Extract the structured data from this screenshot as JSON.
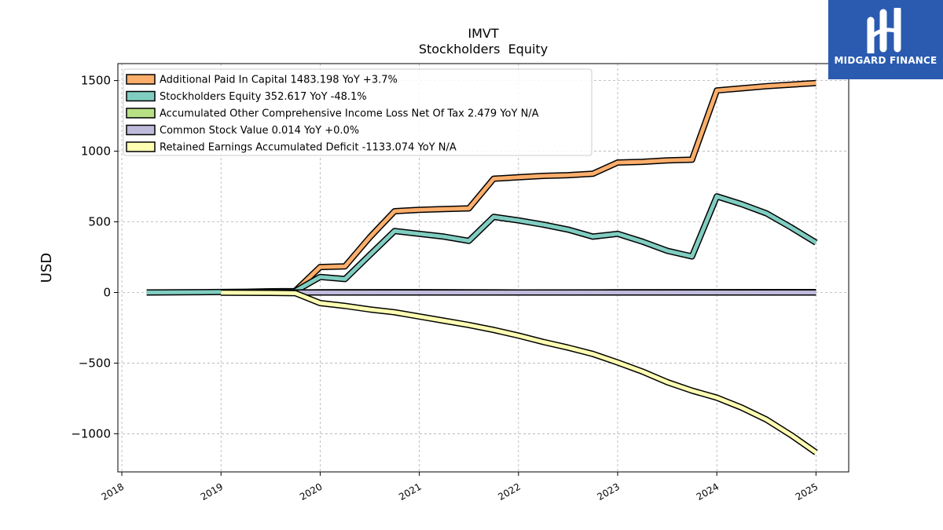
{
  "chart_data": {
    "type": "line",
    "title": "IMVT",
    "subtitle": "Stockholders  Equity",
    "ylabel": "USD",
    "xlabel": "",
    "xlim": [
      2017.96,
      2025.33
    ],
    "ylim": [
      -1270,
      1620
    ],
    "x_ticks": [
      "2018",
      "2019",
      "2020",
      "2021",
      "2022",
      "2023",
      "2024",
      "2025"
    ],
    "y_ticks": [
      -1000,
      -500,
      0,
      500,
      1000,
      1500
    ],
    "y_tick_labels": [
      "−1000",
      "−500",
      "0",
      "500",
      "1000",
      "1500"
    ],
    "grid": true,
    "legend_position": "top-left",
    "series": [
      {
        "name": "Additional Paid In Capital  1483.198 YoY +3.7%",
        "color": "#fdae6b",
        "points": [
          [
            2019.75,
            12
          ],
          [
            2020.0,
            180
          ],
          [
            2020.25,
            185
          ],
          [
            2020.5,
            390
          ],
          [
            2020.75,
            575
          ],
          [
            2021.0,
            585
          ],
          [
            2021.25,
            590
          ],
          [
            2021.5,
            595
          ],
          [
            2021.75,
            805
          ],
          [
            2022.0,
            815
          ],
          [
            2022.25,
            825
          ],
          [
            2022.5,
            830
          ],
          [
            2022.75,
            840
          ],
          [
            2023.0,
            920
          ],
          [
            2023.25,
            925
          ],
          [
            2023.5,
            935
          ],
          [
            2023.75,
            940
          ],
          [
            2024.0,
            1430
          ],
          [
            2024.25,
            1445
          ],
          [
            2024.5,
            1460
          ],
          [
            2025.0,
            1483
          ]
        ]
      },
      {
        "name": "Stockholders Equity  352.617 YoY -48.1%",
        "color": "#80cdc1",
        "points": [
          [
            2018.25,
            0
          ],
          [
            2018.75,
            2
          ],
          [
            2019.0,
            3
          ],
          [
            2019.25,
            5
          ],
          [
            2019.5,
            8
          ],
          [
            2019.75,
            10
          ],
          [
            2020.0,
            110
          ],
          [
            2020.25,
            95
          ],
          [
            2020.5,
            265
          ],
          [
            2020.75,
            435
          ],
          [
            2021.0,
            415
          ],
          [
            2021.25,
            395
          ],
          [
            2021.5,
            365
          ],
          [
            2021.75,
            535
          ],
          [
            2022.0,
            510
          ],
          [
            2022.25,
            480
          ],
          [
            2022.5,
            445
          ],
          [
            2022.75,
            395
          ],
          [
            2023.0,
            415
          ],
          [
            2023.25,
            360
          ],
          [
            2023.5,
            295
          ],
          [
            2023.75,
            255
          ],
          [
            2024.0,
            680
          ],
          [
            2024.25,
            625
          ],
          [
            2024.5,
            560
          ],
          [
            2024.75,
            460
          ],
          [
            2025.0,
            353
          ]
        ]
      },
      {
        "name": "Accumulated Other Comprehensive Income Loss Net Of Tax  2.479 YoY N/A",
        "color": "#b8e186",
        "points": [
          [
            2019.75,
            0
          ],
          [
            2020.0,
            1
          ],
          [
            2021.0,
            2
          ],
          [
            2022.0,
            0
          ],
          [
            2023.0,
            1
          ],
          [
            2024.0,
            2
          ],
          [
            2025.0,
            2.479
          ]
        ]
      },
      {
        "name": "Common Stock Value  0.014 YoY +0.0%",
        "color": "#bebada",
        "points": [
          [
            2019.0,
            0
          ],
          [
            2020.0,
            0
          ],
          [
            2021.0,
            0
          ],
          [
            2022.0,
            0
          ],
          [
            2023.0,
            0
          ],
          [
            2024.0,
            0
          ],
          [
            2025.0,
            0.014
          ]
        ]
      },
      {
        "name": "Retained Earnings Accumulated Deficit  -1133.074 YoY N/A",
        "color": "#ffffb3",
        "points": [
          [
            2019.0,
            -2
          ],
          [
            2019.5,
            -3
          ],
          [
            2019.75,
            -5
          ],
          [
            2020.0,
            -75
          ],
          [
            2020.25,
            -95
          ],
          [
            2020.5,
            -120
          ],
          [
            2020.75,
            -140
          ],
          [
            2021.0,
            -170
          ],
          [
            2021.25,
            -200
          ],
          [
            2021.5,
            -230
          ],
          [
            2021.75,
            -265
          ],
          [
            2022.0,
            -305
          ],
          [
            2022.25,
            -350
          ],
          [
            2022.5,
            -390
          ],
          [
            2022.75,
            -435
          ],
          [
            2023.0,
            -495
          ],
          [
            2023.25,
            -560
          ],
          [
            2023.5,
            -635
          ],
          [
            2023.75,
            -695
          ],
          [
            2024.0,
            -745
          ],
          [
            2024.25,
            -815
          ],
          [
            2024.5,
            -900
          ],
          [
            2024.75,
            -1010
          ],
          [
            2025.0,
            -1133
          ]
        ]
      }
    ]
  },
  "logo": {
    "text": "MIDGARD FINANCE",
    "color": "#2a5bb0"
  }
}
